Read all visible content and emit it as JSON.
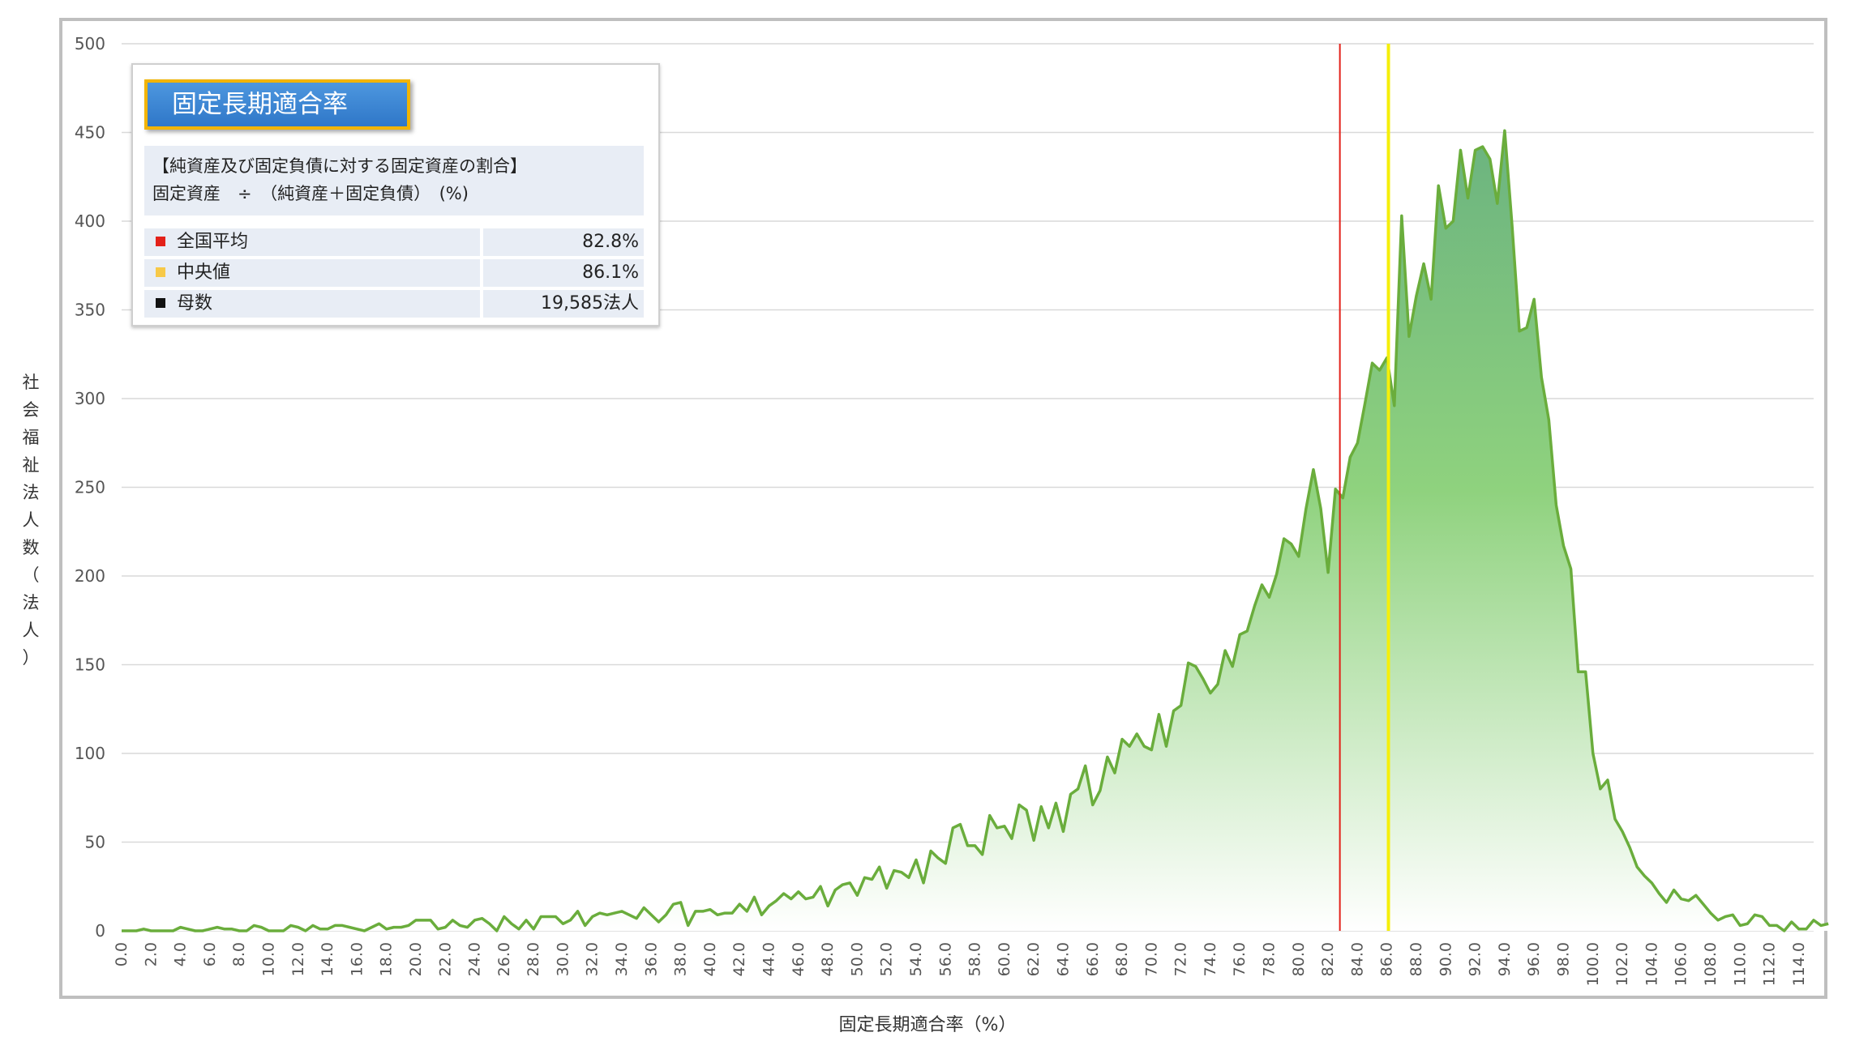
{
  "colors": {
    "area_line": "#6aad3c",
    "area_top": "#6bb37f",
    "area_bottom": "#ffffff",
    "mean_line": "#e32119",
    "median_line": "#f5ef0a",
    "grid": "#d9d9d9",
    "axis_text": "#555555",
    "legend_title_bg": "#3a86d6",
    "legend_title_border": "#f2b400",
    "legend_bg": "#e8edf5"
  },
  "legend": {
    "title": "固定長期適合率",
    "desc_line1": "【純資産及び固定負債に対する固定資産の割合】",
    "desc_line2": "固定資産　÷　（純資産＋固定負債）　(%)",
    "rows": [
      {
        "label": "全国平均",
        "value": "82.8%",
        "color": "#e32119"
      },
      {
        "label": "中央値",
        "value": "86.1%",
        "color": "#f7c948"
      },
      {
        "label": "母数",
        "value": "19,585法人",
        "color": "#111111"
      }
    ]
  },
  "chart_data": {
    "type": "area",
    "title": "",
    "xlabel": "固定長期適合率（%）",
    "ylabel": "社会福祉法人数（法人）",
    "xlim": [
      0,
      115
    ],
    "ylim": [
      0,
      500
    ],
    "y_ticks": [
      0,
      50,
      100,
      150,
      200,
      250,
      300,
      350,
      400,
      450,
      500
    ],
    "x_tick_labels": [
      "0.0",
      "2.0",
      "4.0",
      "6.0",
      "8.0",
      "10.0",
      "12.0",
      "14.0",
      "16.0",
      "18.0",
      "20.0",
      "22.0",
      "24.0",
      "26.0",
      "28.0",
      "30.0",
      "32.0",
      "34.0",
      "36.0",
      "38.0",
      "40.0",
      "42.0",
      "44.0",
      "46.0",
      "48.0",
      "50.0",
      "52.0",
      "54.0",
      "56.0",
      "58.0",
      "60.0",
      "62.0",
      "64.0",
      "66.0",
      "68.0",
      "70.0",
      "72.0",
      "74.0",
      "76.0",
      "78.0",
      "80.0",
      "82.0",
      "84.0",
      "86.0",
      "88.0",
      "90.0",
      "92.0",
      "94.0",
      "96.0",
      "98.0",
      "100.0",
      "102.0",
      "104.0",
      "106.0",
      "108.0",
      "110.0",
      "112.0",
      "114.0"
    ],
    "grid": true,
    "x_step": 0.5,
    "values": [
      0,
      0,
      0,
      1,
      0,
      0,
      0,
      0,
      2,
      1,
      0,
      0,
      1,
      2,
      1,
      1,
      0,
      0,
      3,
      2,
      0,
      0,
      0,
      3,
      2,
      0,
      3,
      1,
      1,
      3,
      3,
      2,
      1,
      0,
      2,
      4,
      1,
      2,
      2,
      3,
      6,
      6,
      6,
      1,
      2,
      6,
      3,
      2,
      6,
      7,
      4,
      0,
      8,
      4,
      1,
      6,
      1,
      8,
      8,
      8,
      4,
      6,
      11,
      3,
      8,
      10,
      9,
      10,
      11,
      9,
      7,
      13,
      9,
      5,
      9,
      15,
      16,
      3,
      11,
      11,
      12,
      9,
      10,
      10,
      15,
      11,
      19,
      9,
      14,
      17,
      21,
      18,
      22,
      18,
      19,
      25,
      14,
      23,
      26,
      27,
      20,
      30,
      29,
      36,
      24,
      34,
      33,
      30,
      40,
      27,
      45,
      41,
      38,
      58,
      60,
      48,
      48,
      43,
      65,
      58,
      59,
      52,
      71,
      68,
      51,
      70,
      58,
      72,
      56,
      77,
      80,
      93,
      71,
      79,
      98,
      89,
      108,
      104,
      111,
      104,
      102,
      122,
      104,
      124,
      127,
      151,
      149,
      142,
      134,
      139,
      158,
      149,
      167,
      169,
      183,
      195,
      188,
      201,
      221,
      218,
      211,
      238,
      260,
      238,
      202,
      249,
      244,
      267,
      275,
      297,
      320,
      316,
      323,
      296,
      403,
      335,
      358,
      376,
      356,
      420,
      396,
      400,
      440,
      413,
      440,
      442,
      435,
      410,
      451,
      398,
      338,
      340,
      356,
      312,
      288,
      240,
      217,
      204,
      146,
      146,
      100,
      80,
      85,
      63,
      56,
      47,
      36,
      31,
      27,
      21,
      16,
      23,
      18,
      17,
      20,
      15,
      10,
      6,
      8,
      9,
      3,
      4,
      9,
      8,
      3,
      3,
      0,
      5,
      1,
      1,
      6,
      3,
      4
    ]
  },
  "reference_lines": [
    {
      "name": "全国平均",
      "x": 82.8,
      "color": "#e32119"
    },
    {
      "name": "中央値",
      "x": 86.1,
      "color": "#f5ef0a"
    }
  ]
}
